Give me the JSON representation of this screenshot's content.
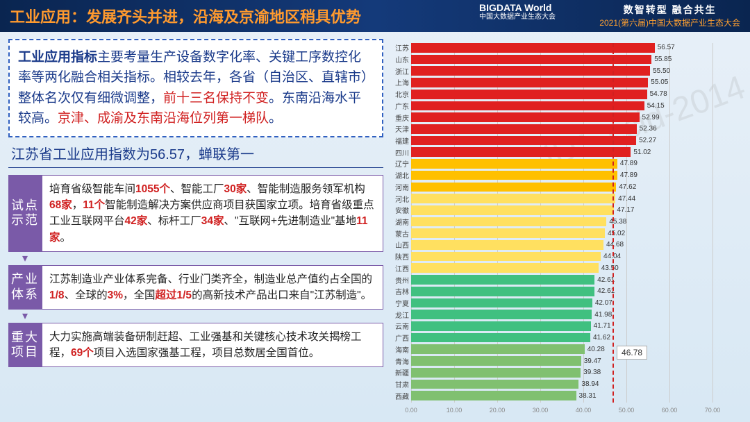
{
  "header": {
    "title": "工业应用：发展齐头并进，沿海及京渝地区稍具优势",
    "logo_line1": "BIGDATA World",
    "logo_line2": "中国大数据产业生态大会",
    "right_line1": "数智转型  融合共生",
    "right_line2": "2021(第六届)中国大数据产业生态大会"
  },
  "description": {
    "lead": "工业应用指标",
    "body1": "主要考量生产设备数字化率、关键工序数控化率等两化融合相关指标。相较去年，各省（自治区、直辖市）整体名次仅有细微调整，",
    "red1": "前十三名保持不变",
    "body2": "。东南沿海水平较高。",
    "red2": "京津、成渝及东南沿海位列第一梯队",
    "body3": "。"
  },
  "sub_title": "江苏省工业应用指数为56.57，蝉联第一",
  "sections": [
    {
      "tag": "试点示范",
      "html": "培育省级智能车间<span class='red'>1055个</span>、智能工厂<span class='red'>30家</span>、智能制造服务领军机构<span class='red'>68家</span>，<span class='red'>11个</span>智能制造解决方案供应商项目获国家立项。培育省级重点工业互联网平台<span class='red'>42家</span>、标杆工厂<span class='red'>34家</span>、\"互联网+先进制造业\"基地<span class='red'>11家</span>。"
    },
    {
      "tag": "产业体系",
      "html": "江苏制造业产业体系完备、行业门类齐全，制造业总产值约占全国的<span class='red'>1/8</span>、全球的<span class='red'>3%</span>，全国<span class='red'>超过1/5</span>的高新技术产品出口来自\"江苏制造\"。"
    },
    {
      "tag": "重大项目",
      "html": "大力实施高端装备研制赶超、工业强基和关键核心技术攻关揭榜工程，<span class='red'>69个</span>项目入选国家强基工程，项目总数居全国首位。"
    }
  ],
  "chart": {
    "type": "bar-horizontal",
    "xlim": [
      0,
      70
    ],
    "xticks": [
      0,
      10,
      20,
      30,
      40,
      50,
      60,
      70
    ],
    "xtick_labels": [
      "0.00",
      "10.00",
      "20.00",
      "30.00",
      "40.00",
      "50.00",
      "60.00",
      "70.00"
    ],
    "average": 46.78,
    "average_label": "46.78",
    "colors": {
      "tier1": "#e02020",
      "tier2": "#ffc000",
      "tier3": "#ffe060",
      "tier4": "#40c080",
      "tier5": "#80c070",
      "grid": "#cccccc"
    },
    "bars": [
      {
        "label": "江苏",
        "value": 56.57,
        "color": "#e02020"
      },
      {
        "label": "山东",
        "value": 55.85,
        "color": "#e02020"
      },
      {
        "label": "浙江",
        "value": 55.5,
        "color": "#e02020"
      },
      {
        "label": "上海",
        "value": 55.05,
        "color": "#e02020"
      },
      {
        "label": "北京",
        "value": 54.78,
        "color": "#e02020"
      },
      {
        "label": "广东",
        "value": 54.15,
        "color": "#e02020"
      },
      {
        "label": "重庆",
        "value": 52.99,
        "color": "#e02020"
      },
      {
        "label": "天津",
        "value": 52.36,
        "color": "#e02020"
      },
      {
        "label": "福建",
        "value": 52.27,
        "color": "#e02020"
      },
      {
        "label": "四川",
        "value": 51.02,
        "color": "#e02020"
      },
      {
        "label": "辽宁",
        "value": 47.89,
        "color": "#ffc000"
      },
      {
        "label": "湖北",
        "value": 47.89,
        "color": "#ffc000"
      },
      {
        "label": "河南",
        "value": 47.62,
        "color": "#ffc000"
      },
      {
        "label": "河北",
        "value": 47.44,
        "color": "#ffe060"
      },
      {
        "label": "安徽",
        "value": 47.17,
        "color": "#ffe060"
      },
      {
        "label": "湖南",
        "value": 45.38,
        "color": "#ffe060"
      },
      {
        "label": "蒙古",
        "value": 45.02,
        "color": "#ffe060"
      },
      {
        "label": "山西",
        "value": 44.68,
        "color": "#ffe060"
      },
      {
        "label": "陕西",
        "value": 44.04,
        "color": "#ffe060"
      },
      {
        "label": "江西",
        "value": 43.5,
        "color": "#ffe060"
      },
      {
        "label": "贵州",
        "value": 42.61,
        "color": "#40c080"
      },
      {
        "label": "吉林",
        "value": 42.61,
        "color": "#40c080"
      },
      {
        "label": "宁夏",
        "value": 42.07,
        "color": "#40c080"
      },
      {
        "label": "龙江",
        "value": 41.98,
        "color": "#40c080"
      },
      {
        "label": "云南",
        "value": 41.71,
        "color": "#40c080"
      },
      {
        "label": "广西",
        "value": 41.62,
        "color": "#40c080"
      },
      {
        "label": "海南",
        "value": 40.28,
        "color": "#80c070"
      },
      {
        "label": "青海",
        "value": 39.47,
        "color": "#80c070"
      },
      {
        "label": "新疆",
        "value": 39.38,
        "color": "#80c070"
      },
      {
        "label": "甘肃",
        "value": 38.94,
        "color": "#80c070"
      },
      {
        "label": "西藏",
        "value": 38.31,
        "color": "#80c070"
      }
    ]
  },
  "watermark": "ID：ccid-2014"
}
